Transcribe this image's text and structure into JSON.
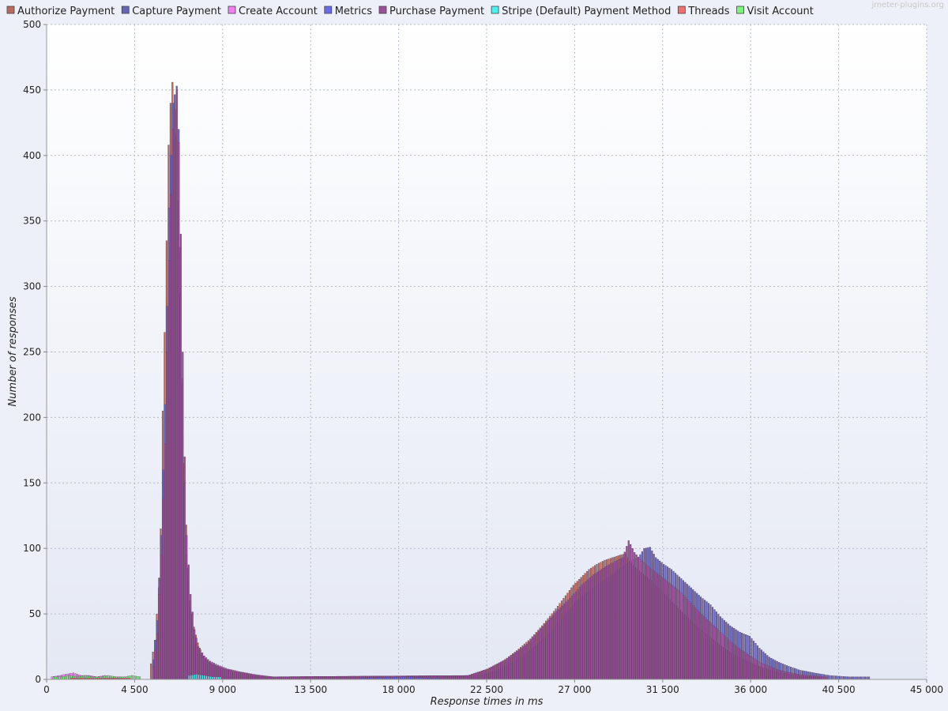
{
  "watermark": "jmeter-plugins.org",
  "chart_data": {
    "type": "bar",
    "xlabel": "Response times in ms",
    "ylabel": "Number of responses",
    "xlim": [
      0,
      45000
    ],
    "ylim": [
      0,
      500
    ],
    "x_ticks": [
      "0",
      "4 500",
      "9 000",
      "13 500",
      "18 000",
      "22 500",
      "27 000",
      "31 500",
      "36 000",
      "40 500",
      "45 000"
    ],
    "y_ticks": [
      "0",
      "50",
      "100",
      "150",
      "200",
      "250",
      "300",
      "350",
      "400",
      "450",
      "500"
    ],
    "grid": true,
    "legend_position": "top",
    "series": [
      {
        "name": "Authorize Payment",
        "color": "#b86b5c",
        "points": [
          [
            5300,
            12
          ],
          [
            5500,
            30
          ],
          [
            5700,
            70
          ],
          [
            5800,
            115
          ],
          [
            5900,
            205
          ],
          [
            6000,
            265
          ],
          [
            6100,
            335
          ],
          [
            6200,
            408
          ],
          [
            6300,
            440
          ],
          [
            6400,
            456
          ],
          [
            6500,
            440
          ],
          [
            6600,
            415
          ],
          [
            6700,
            365
          ],
          [
            6800,
            295
          ],
          [
            6900,
            225
          ],
          [
            7000,
            165
          ],
          [
            7100,
            118
          ],
          [
            7200,
            85
          ],
          [
            7300,
            60
          ],
          [
            7500,
            40
          ],
          [
            7700,
            28
          ],
          [
            7900,
            20
          ],
          [
            8100,
            16
          ],
          [
            8400,
            12
          ],
          [
            8700,
            10
          ],
          [
            9100,
            8
          ],
          [
            9600,
            6
          ],
          [
            10100,
            5
          ],
          [
            10800,
            3
          ],
          [
            11600,
            2
          ],
          [
            21500,
            3
          ],
          [
            22500,
            8
          ],
          [
            23300,
            14
          ],
          [
            24000,
            22
          ],
          [
            24700,
            31
          ],
          [
            25300,
            41
          ],
          [
            25900,
            52
          ],
          [
            26400,
            62
          ],
          [
            26900,
            72
          ],
          [
            27300,
            78
          ],
          [
            27700,
            84
          ],
          [
            28100,
            88
          ],
          [
            28500,
            91
          ],
          [
            28900,
            93
          ],
          [
            29300,
            95
          ],
          [
            29600,
            96
          ],
          [
            29800,
            90
          ],
          [
            30200,
            84
          ],
          [
            30700,
            78
          ],
          [
            31300,
            70
          ],
          [
            31800,
            62
          ],
          [
            32400,
            53
          ],
          [
            33000,
            44
          ],
          [
            33600,
            36
          ],
          [
            34300,
            28
          ],
          [
            35000,
            20
          ],
          [
            35800,
            14
          ],
          [
            36600,
            9
          ],
          [
            37500,
            5
          ],
          [
            38500,
            3
          ],
          [
            39500,
            2
          ]
        ]
      },
      {
        "name": "Capture Payment",
        "color": "#6565b8",
        "points": [
          [
            5400,
            15
          ],
          [
            5600,
            45
          ],
          [
            5800,
            110
          ],
          [
            6000,
            210
          ],
          [
            6200,
            360
          ],
          [
            6400,
            440
          ],
          [
            6600,
            453
          ],
          [
            6700,
            420
          ],
          [
            6800,
            330
          ],
          [
            6900,
            230
          ],
          [
            7000,
            150
          ],
          [
            7100,
            95
          ],
          [
            7300,
            55
          ],
          [
            7500,
            33
          ],
          [
            7700,
            22
          ],
          [
            8000,
            17
          ],
          [
            8300,
            13
          ],
          [
            8700,
            10
          ],
          [
            9200,
            7
          ],
          [
            9800,
            5
          ],
          [
            10500,
            3
          ],
          [
            11500,
            2
          ],
          [
            22000,
            3
          ],
          [
            23000,
            7
          ],
          [
            24000,
            15
          ],
          [
            25000,
            26
          ],
          [
            25800,
            37
          ],
          [
            26500,
            50
          ],
          [
            27100,
            60
          ],
          [
            27700,
            68
          ],
          [
            28300,
            74
          ],
          [
            28900,
            80
          ],
          [
            29400,
            86
          ],
          [
            29900,
            91
          ],
          [
            30200,
            93
          ],
          [
            30500,
            100
          ],
          [
            30800,
            101
          ],
          [
            31100,
            93
          ],
          [
            31500,
            88
          ],
          [
            31900,
            84
          ],
          [
            32400,
            77
          ],
          [
            32900,
            70
          ],
          [
            33400,
            63
          ],
          [
            33900,
            57
          ],
          [
            34400,
            48
          ],
          [
            34900,
            41
          ],
          [
            35400,
            36
          ],
          [
            35900,
            33
          ],
          [
            36400,
            24
          ],
          [
            36900,
            17
          ],
          [
            37400,
            13
          ],
          [
            37900,
            10
          ],
          [
            38500,
            7
          ],
          [
            39200,
            5
          ],
          [
            40000,
            3
          ],
          [
            41000,
            2
          ],
          [
            42000,
            2
          ]
        ]
      },
      {
        "name": "Create Account",
        "color": "#f07ff0",
        "points": [
          [
            200,
            2
          ],
          [
            600,
            3
          ],
          [
            900,
            4
          ],
          [
            1300,
            5
          ],
          [
            1700,
            3
          ],
          [
            2100,
            3
          ],
          [
            2500,
            2
          ],
          [
            2900,
            3
          ],
          [
            3300,
            2
          ],
          [
            3700,
            2
          ]
        ]
      },
      {
        "name": "Metrics",
        "color": "#6b6bea",
        "points": [
          [
            16000,
            1
          ],
          [
            18500,
            2
          ],
          [
            19500,
            1
          ],
          [
            20000,
            1
          ]
        ]
      },
      {
        "name": "Purchase Payment",
        "color": "#9a4f9a",
        "points": [
          [
            5400,
            10
          ],
          [
            5600,
            35
          ],
          [
            5800,
            95
          ],
          [
            6000,
            180
          ],
          [
            6200,
            320
          ],
          [
            6400,
            420
          ],
          [
            6600,
            450
          ],
          [
            6700,
            410
          ],
          [
            6800,
            340
          ],
          [
            6900,
            250
          ],
          [
            7000,
            170
          ],
          [
            7100,
            110
          ],
          [
            7300,
            65
          ],
          [
            7500,
            38
          ],
          [
            7700,
            25
          ],
          [
            8000,
            18
          ],
          [
            8300,
            14
          ],
          [
            8700,
            11
          ],
          [
            9200,
            8
          ],
          [
            9800,
            6
          ],
          [
            10500,
            4
          ],
          [
            11500,
            2
          ],
          [
            21500,
            3
          ],
          [
            22500,
            8
          ],
          [
            23500,
            16
          ],
          [
            24500,
            27
          ],
          [
            25300,
            40
          ],
          [
            26000,
            52
          ],
          [
            26700,
            62
          ],
          [
            27300,
            72
          ],
          [
            27900,
            80
          ],
          [
            28500,
            86
          ],
          [
            29000,
            90
          ],
          [
            29400,
            93
          ],
          [
            29700,
            106
          ],
          [
            30000,
            97
          ],
          [
            30400,
            90
          ],
          [
            30900,
            84
          ],
          [
            31400,
            78
          ],
          [
            31900,
            72
          ],
          [
            32400,
            66
          ],
          [
            32900,
            58
          ],
          [
            33400,
            50
          ],
          [
            33900,
            43
          ],
          [
            34400,
            36
          ],
          [
            34900,
            29
          ],
          [
            35400,
            23
          ],
          [
            35900,
            18
          ],
          [
            36400,
            13
          ],
          [
            36900,
            10
          ],
          [
            37400,
            7
          ],
          [
            38000,
            5
          ],
          [
            38800,
            3
          ],
          [
            39800,
            2
          ]
        ]
      },
      {
        "name": "Stripe (Default) Payment Method",
        "color": "#4ff0f0",
        "points": [
          [
            7200,
            3
          ],
          [
            7600,
            4
          ],
          [
            8000,
            3
          ],
          [
            8400,
            2
          ],
          [
            8800,
            2
          ]
        ]
      },
      {
        "name": "Threads",
        "color": "#f07070",
        "points": [
          [
            1200,
            1
          ],
          [
            2500,
            1
          ],
          [
            4200,
            1
          ]
        ]
      },
      {
        "name": "Visit Account",
        "color": "#7ef07e",
        "points": [
          [
            300,
            2
          ],
          [
            700,
            2
          ],
          [
            1100,
            3
          ],
          [
            1500,
            2
          ],
          [
            1900,
            3
          ],
          [
            2300,
            2
          ],
          [
            2700,
            2
          ],
          [
            3100,
            3
          ],
          [
            3500,
            2
          ],
          [
            3900,
            2
          ],
          [
            4300,
            3
          ],
          [
            4700,
            2
          ]
        ]
      }
    ]
  }
}
